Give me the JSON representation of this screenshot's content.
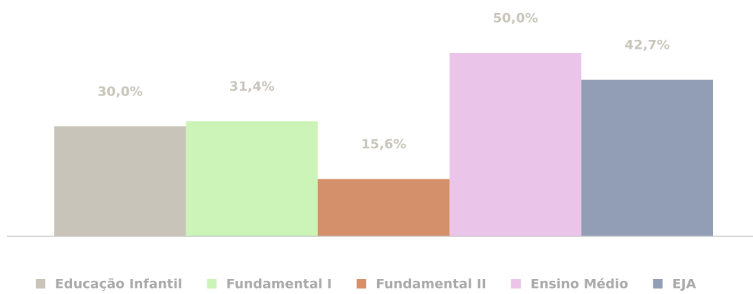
{
  "chart_data": {
    "type": "bar",
    "categories": [
      "Educação Infantil",
      "Fundamental I",
      "Fundamental II",
      "Ensino Médio",
      "EJA"
    ],
    "values": [
      30.0,
      31.4,
      15.6,
      50.0,
      42.7
    ],
    "value_labels": [
      "30,0%",
      "31,4%",
      "15,6%",
      "50,0%",
      "42,7%"
    ],
    "colors": [
      "#c8c4b9",
      "#ccf4b9",
      "#d4906a",
      "#ebc4ea",
      "#919eb5"
    ],
    "ylim": [
      0,
      50
    ],
    "legend": "bottom"
  }
}
